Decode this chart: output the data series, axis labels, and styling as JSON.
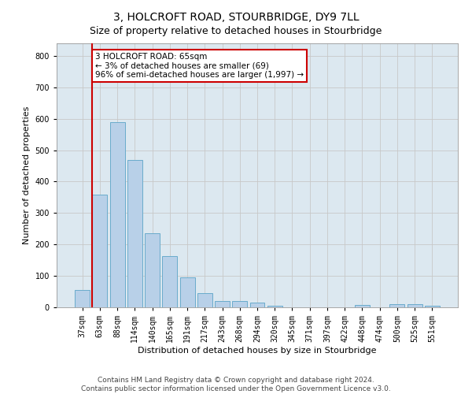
{
  "title": "3, HOLCROFT ROAD, STOURBRIDGE, DY9 7LL",
  "subtitle": "Size of property relative to detached houses in Stourbridge",
  "xlabel": "Distribution of detached houses by size in Stourbridge",
  "ylabel": "Number of detached properties",
  "categories": [
    "37sqm",
    "63sqm",
    "88sqm",
    "114sqm",
    "140sqm",
    "165sqm",
    "191sqm",
    "217sqm",
    "243sqm",
    "268sqm",
    "294sqm",
    "320sqm",
    "345sqm",
    "371sqm",
    "397sqm",
    "422sqm",
    "448sqm",
    "474sqm",
    "500sqm",
    "525sqm",
    "551sqm"
  ],
  "values": [
    55,
    358,
    588,
    468,
    235,
    162,
    96,
    44,
    20,
    19,
    15,
    6,
    0,
    0,
    0,
    0,
    8,
    0,
    9,
    9,
    6
  ],
  "bar_color": "#b8d0e8",
  "bar_edge_color": "#6aabcc",
  "vline_color": "#cc0000",
  "annotation_text": "3 HOLCROFT ROAD: 65sqm\n← 3% of detached houses are smaller (69)\n96% of semi-detached houses are larger (1,997) →",
  "annotation_box_color": "#ffffff",
  "annotation_box_edge_color": "#cc0000",
  "ylim": [
    0,
    840
  ],
  "yticks": [
    0,
    100,
    200,
    300,
    400,
    500,
    600,
    700,
    800
  ],
  "grid_color": "#c8c8c8",
  "bg_color": "#dce8f0",
  "footer_line1": "Contains HM Land Registry data © Crown copyright and database right 2024.",
  "footer_line2": "Contains public sector information licensed under the Open Government Licence v3.0.",
  "title_fontsize": 10,
  "subtitle_fontsize": 9,
  "xlabel_fontsize": 8,
  "ylabel_fontsize": 8,
  "annot_fontsize": 7.5,
  "tick_fontsize": 7,
  "footer_fontsize": 6.5
}
